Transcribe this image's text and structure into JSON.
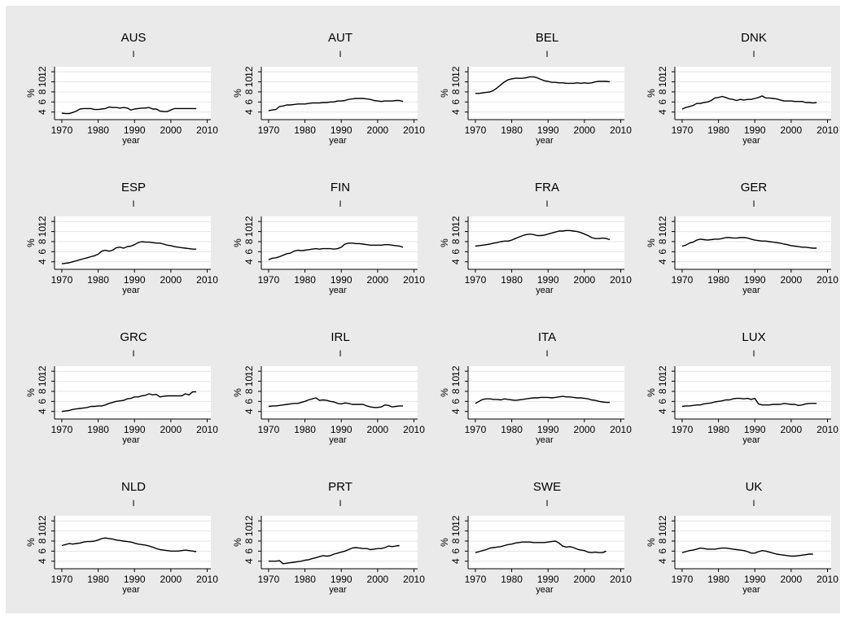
{
  "chart_data": {
    "type": "line",
    "layout": "4x4 small multiples",
    "shared": {
      "xlabel": "year",
      "ylabel": "%",
      "panel_subtitle": "I",
      "xlim": [
        1968,
        2011
      ],
      "ylim": [
        2.5,
        13
      ],
      "xticks": [
        1970,
        1980,
        1990,
        2000,
        2010
      ],
      "yticks": [
        4,
        6,
        8,
        10,
        12
      ],
      "grid": "horizontal",
      "line_color": "#000000",
      "panel_background": "#ffffff",
      "frame_background": "#eaeaea"
    },
    "panels": [
      {
        "title": "AUS",
        "x_start": 1970,
        "values": [
          3.8,
          3.7,
          3.7,
          3.9,
          4.2,
          4.6,
          4.7,
          4.7,
          4.7,
          4.5,
          4.5,
          4.6,
          4.7,
          5.0,
          4.9,
          4.9,
          4.8,
          4.9,
          4.8,
          4.4,
          4.6,
          4.7,
          4.8,
          4.8,
          4.9,
          4.6,
          4.6,
          4.2,
          4.1,
          4.1,
          4.4,
          4.7,
          4.7,
          4.7,
          4.7,
          4.7,
          4.7,
          4.7
        ]
      },
      {
        "title": "AUT",
        "x_start": 1970,
        "values": [
          4.3,
          4.4,
          4.5,
          5.1,
          5.2,
          5.4,
          5.4,
          5.5,
          5.6,
          5.6,
          5.6,
          5.7,
          5.8,
          5.8,
          5.8,
          5.9,
          5.9,
          6.0,
          6.0,
          6.2,
          6.2,
          6.3,
          6.5,
          6.6,
          6.7,
          6.7,
          6.7,
          6.6,
          6.5,
          6.3,
          6.2,
          6.1,
          6.2,
          6.2,
          6.2,
          6.3,
          6.3,
          6.1
        ]
      },
      {
        "title": "BEL",
        "x_start": 1970,
        "values": [
          7.7,
          7.7,
          7.8,
          7.9,
          8.0,
          8.3,
          8.8,
          9.4,
          10.0,
          10.4,
          10.6,
          10.7,
          10.7,
          10.7,
          10.8,
          11.0,
          11.0,
          10.8,
          10.5,
          10.2,
          10.1,
          9.9,
          9.9,
          9.8,
          9.8,
          9.7,
          9.7,
          9.7,
          9.8,
          9.7,
          9.8,
          9.7,
          9.8,
          10.0,
          10.1,
          10.1,
          10.1,
          10.0
        ]
      },
      {
        "title": "DNK",
        "x_start": 1970,
        "values": [
          4.6,
          4.9,
          5.1,
          5.3,
          5.7,
          5.7,
          5.9,
          6.0,
          6.3,
          6.8,
          6.9,
          7.1,
          6.9,
          6.6,
          6.5,
          6.3,
          6.5,
          6.4,
          6.5,
          6.5,
          6.7,
          6.9,
          7.2,
          6.8,
          6.8,
          6.7,
          6.6,
          6.4,
          6.2,
          6.2,
          6.2,
          6.1,
          6.1,
          6.1,
          5.9,
          5.9,
          5.8,
          5.9
        ]
      },
      {
        "title": "ESP",
        "x_start": 1970,
        "values": [
          3.6,
          3.7,
          3.8,
          4.0,
          4.2,
          4.4,
          4.6,
          4.8,
          5.0,
          5.2,
          5.5,
          6.1,
          6.3,
          6.1,
          6.3,
          6.8,
          6.9,
          6.7,
          7.0,
          7.1,
          7.4,
          7.8,
          8.0,
          7.9,
          7.9,
          7.8,
          7.7,
          7.7,
          7.5,
          7.3,
          7.2,
          7.0,
          6.9,
          6.8,
          6.7,
          6.6,
          6.5,
          6.5
        ]
      },
      {
        "title": "FIN",
        "x_start": 1970,
        "values": [
          4.4,
          4.7,
          4.8,
          5.0,
          5.3,
          5.6,
          5.7,
          6.1,
          6.3,
          6.2,
          6.3,
          6.4,
          6.5,
          6.6,
          6.5,
          6.6,
          6.6,
          6.6,
          6.5,
          6.6,
          6.9,
          7.5,
          7.7,
          7.7,
          7.6,
          7.6,
          7.5,
          7.4,
          7.3,
          7.3,
          7.3,
          7.3,
          7.4,
          7.4,
          7.3,
          7.2,
          7.1,
          6.9
        ]
      },
      {
        "title": "FRA",
        "x_start": 1970,
        "values": [
          7.1,
          7.2,
          7.3,
          7.4,
          7.5,
          7.7,
          7.8,
          8.0,
          8.1,
          8.1,
          8.3,
          8.6,
          8.9,
          9.2,
          9.4,
          9.5,
          9.4,
          9.2,
          9.2,
          9.3,
          9.5,
          9.7,
          9.9,
          10.1,
          10.1,
          10.2,
          10.2,
          10.1,
          10.0,
          9.8,
          9.5,
          9.2,
          8.8,
          8.6,
          8.6,
          8.7,
          8.6,
          8.4
        ]
      },
      {
        "title": "GER",
        "x_start": 1970,
        "values": [
          7.1,
          7.3,
          7.7,
          7.9,
          8.3,
          8.5,
          8.4,
          8.3,
          8.4,
          8.5,
          8.5,
          8.6,
          8.8,
          8.8,
          8.7,
          8.7,
          8.8,
          8.8,
          8.7,
          8.5,
          8.3,
          8.2,
          8.1,
          8.1,
          8.0,
          7.9,
          7.8,
          7.7,
          7.5,
          7.4,
          7.2,
          7.1,
          7.0,
          6.9,
          6.9,
          6.8,
          6.7,
          6.7
        ]
      },
      {
        "title": "GRC",
        "x_start": 1970,
        "values": [
          4.0,
          4.1,
          4.2,
          4.4,
          4.5,
          4.6,
          4.7,
          4.8,
          5.0,
          5.0,
          5.1,
          5.1,
          5.3,
          5.6,
          5.8,
          6.0,
          6.1,
          6.2,
          6.5,
          6.6,
          6.9,
          6.9,
          7.1,
          7.2,
          7.5,
          7.3,
          7.4,
          6.9,
          7.0,
          7.1,
          7.1,
          7.1,
          7.1,
          7.1,
          7.5,
          7.3,
          7.9,
          7.9
        ]
      },
      {
        "title": "IRL",
        "x_start": 1970,
        "values": [
          5.0,
          5.1,
          5.1,
          5.2,
          5.3,
          5.4,
          5.5,
          5.6,
          5.6,
          5.8,
          6.0,
          6.3,
          6.5,
          6.7,
          6.2,
          6.3,
          6.2,
          6.0,
          5.9,
          5.6,
          5.5,
          5.7,
          5.6,
          5.4,
          5.4,
          5.4,
          5.4,
          5.1,
          4.9,
          4.8,
          4.8,
          4.9,
          5.3,
          5.2,
          4.9,
          5.0,
          5.1,
          5.1
        ]
      },
      {
        "title": "ITA",
        "x_start": 1970,
        "values": [
          5.6,
          6.0,
          6.4,
          6.5,
          6.5,
          6.4,
          6.4,
          6.3,
          6.5,
          6.4,
          6.3,
          6.2,
          6.3,
          6.4,
          6.5,
          6.6,
          6.7,
          6.7,
          6.8,
          6.8,
          6.8,
          6.7,
          6.8,
          6.9,
          7.0,
          6.9,
          6.9,
          6.8,
          6.7,
          6.7,
          6.6,
          6.5,
          6.3,
          6.2,
          6.0,
          5.9,
          5.8,
          5.8
        ]
      },
      {
        "title": "LUX",
        "x_start": 1970,
        "values": [
          5.0,
          5.1,
          5.1,
          5.2,
          5.3,
          5.3,
          5.5,
          5.6,
          5.7,
          5.9,
          6.0,
          6.1,
          6.3,
          6.3,
          6.5,
          6.6,
          6.6,
          6.5,
          6.6,
          6.4,
          6.6,
          5.5,
          5.3,
          5.3,
          5.3,
          5.4,
          5.4,
          5.4,
          5.6,
          5.5,
          5.4,
          5.4,
          5.2,
          5.3,
          5.5,
          5.6,
          5.6,
          5.6
        ]
      },
      {
        "title": "NLD",
        "x_start": 1970,
        "values": [
          7.1,
          7.3,
          7.5,
          7.4,
          7.5,
          7.6,
          7.8,
          7.9,
          7.9,
          8.0,
          8.2,
          8.5,
          8.6,
          8.5,
          8.4,
          8.2,
          8.1,
          8.0,
          7.9,
          7.8,
          7.6,
          7.4,
          7.3,
          7.2,
          7.0,
          6.8,
          6.5,
          6.3,
          6.2,
          6.1,
          6.0,
          6.0,
          6.0,
          6.1,
          6.2,
          6.1,
          6.0,
          5.9
        ]
      },
      {
        "title": "PRT",
        "x_start": 1970,
        "values": [
          4.0,
          4.0,
          4.0,
          4.1,
          3.5,
          3.6,
          3.7,
          3.8,
          3.9,
          4.0,
          4.2,
          4.3,
          4.5,
          4.7,
          4.9,
          5.1,
          5.0,
          5.1,
          5.4,
          5.6,
          5.8,
          6.0,
          6.3,
          6.6,
          6.7,
          6.6,
          6.5,
          6.5,
          6.3,
          6.4,
          6.5,
          6.5,
          6.7,
          7.0,
          6.9,
          7.0,
          7.1
        ]
      },
      {
        "title": "SWE",
        "x_start": 1970,
        "values": [
          5.7,
          5.9,
          6.1,
          6.3,
          6.6,
          6.7,
          6.8,
          6.9,
          7.1,
          7.3,
          7.4,
          7.6,
          7.7,
          7.8,
          7.8,
          7.8,
          7.7,
          7.7,
          7.7,
          7.7,
          7.8,
          7.9,
          8.0,
          7.6,
          7.0,
          6.8,
          6.9,
          6.7,
          6.4,
          6.2,
          6.1,
          5.8,
          5.7,
          5.8,
          5.7,
          5.7,
          6.0
        ]
      },
      {
        "title": "UK",
        "x_start": 1970,
        "values": [
          5.7,
          5.9,
          6.1,
          6.2,
          6.4,
          6.6,
          6.5,
          6.4,
          6.4,
          6.4,
          6.5,
          6.6,
          6.6,
          6.5,
          6.4,
          6.3,
          6.2,
          6.1,
          5.9,
          5.6,
          5.6,
          5.9,
          6.1,
          6.0,
          5.8,
          5.6,
          5.4,
          5.3,
          5.2,
          5.1,
          5.0,
          5.0,
          5.1,
          5.2,
          5.3,
          5.4,
          5.4
        ]
      }
    ]
  }
}
